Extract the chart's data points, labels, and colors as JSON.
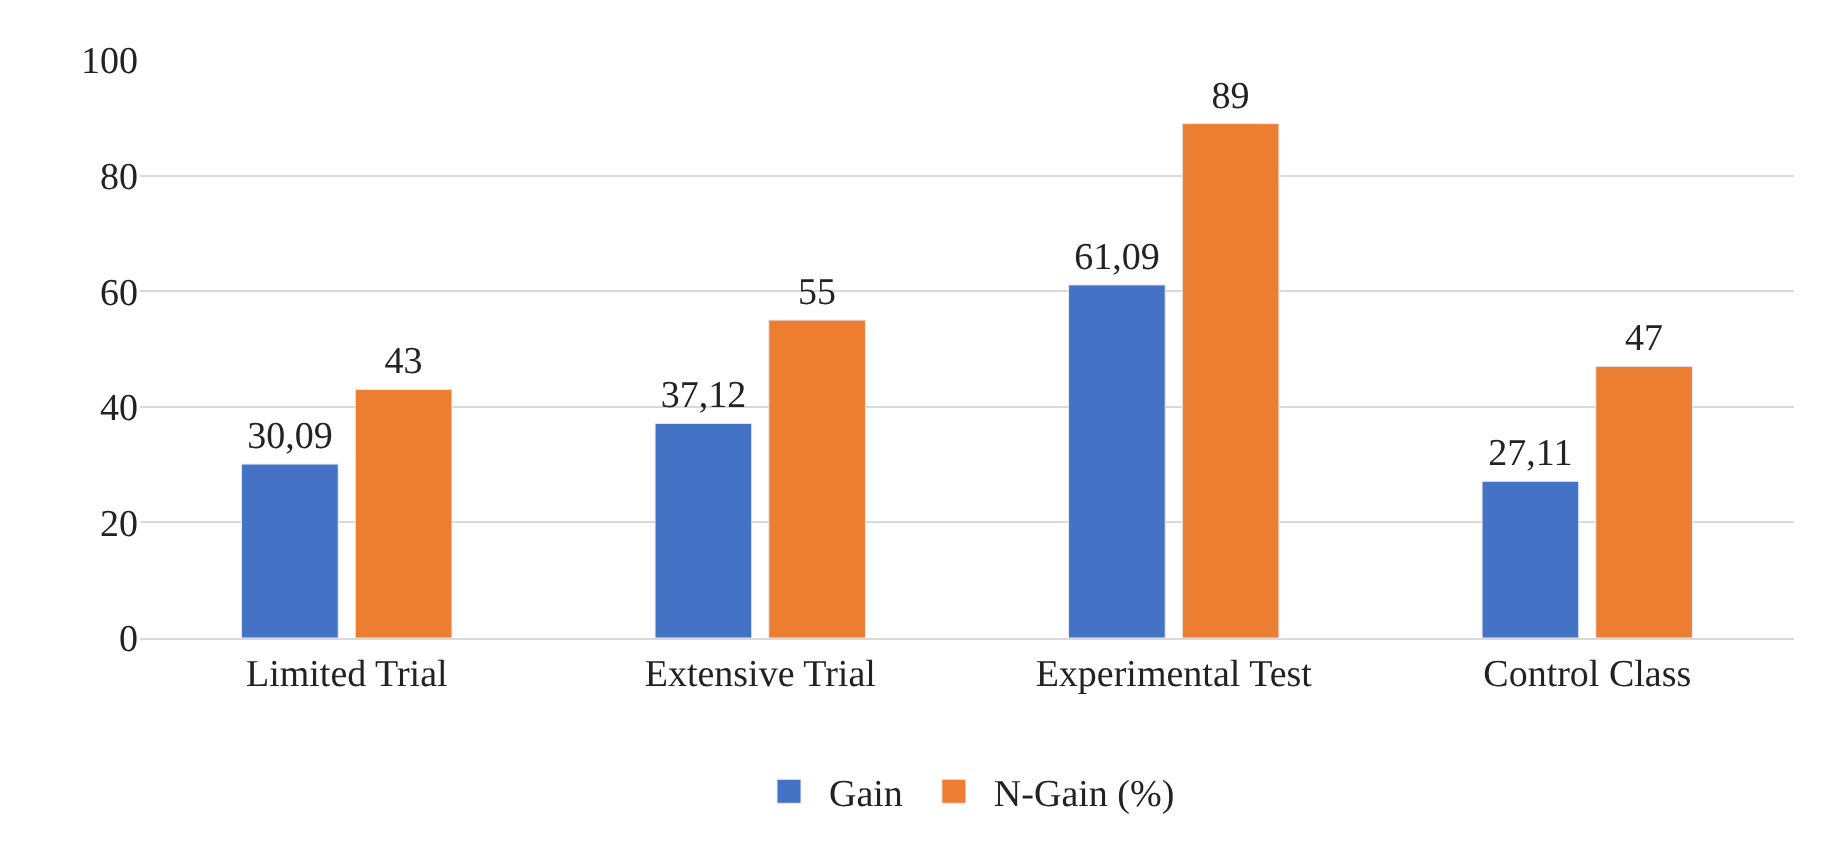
{
  "chart_data": {
    "type": "bar",
    "categories": [
      "Limited Trial",
      "Extensive Trial",
      "Experimental Test",
      "Control Class"
    ],
    "series": [
      {
        "name": "Gain",
        "color": "#4472c4",
        "values": [
          30.09,
          37.12,
          61.09,
          27.11
        ],
        "value_labels": [
          "30,09",
          "37,12",
          "61,09",
          "27,11"
        ]
      },
      {
        "name": "N-Gain (%)",
        "color": "#ed7d31",
        "values": [
          43,
          55,
          89,
          47
        ],
        "value_labels": [
          "43",
          "55",
          "89",
          "47"
        ]
      }
    ],
    "ylim": [
      0,
      100
    ],
    "yticks": [
      0,
      20,
      40,
      60,
      80,
      100
    ],
    "grid": "y",
    "legend": "bottom"
  }
}
